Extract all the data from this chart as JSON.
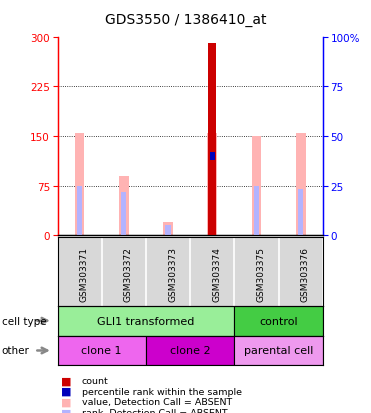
{
  "title": "GDS3550 / 1386410_at",
  "samples": [
    "GSM303371",
    "GSM303372",
    "GSM303373",
    "GSM303374",
    "GSM303375",
    "GSM303376"
  ],
  "count_values": [
    0,
    0,
    0,
    290,
    0,
    0
  ],
  "percentile_rank_vals": [
    0,
    0,
    0,
    120,
    0,
    0
  ],
  "percentile_rank_marker": [
    0,
    0,
    0,
    120,
    0,
    0
  ],
  "value_absent": [
    155,
    90,
    20,
    155,
    150,
    155
  ],
  "rank_absent": [
    75,
    65,
    15,
    120,
    75,
    70
  ],
  "ylim_left": [
    0,
    300
  ],
  "ylim_right": [
    0,
    100
  ],
  "yticks_left": [
    0,
    75,
    150,
    225,
    300
  ],
  "yticks_right": [
    0,
    25,
    50,
    75,
    100
  ],
  "count_color": "#cc0000",
  "percentile_color": "#0000bb",
  "value_absent_color": "#ffb3b3",
  "rank_absent_color": "#b3b3ff",
  "cell_type_row": [
    {
      "label": "GLI1 transformed",
      "cols": 4,
      "color": "#99ee99"
    },
    {
      "label": "control",
      "cols": 2,
      "color": "#44cc44"
    }
  ],
  "other_row": [
    {
      "label": "clone 1",
      "cols": 2,
      "color": "#ee66ee"
    },
    {
      "label": "clone 2",
      "cols": 2,
      "color": "#cc00cc"
    },
    {
      "label": "parental cell",
      "cols": 2,
      "color": "#ee99ee"
    }
  ],
  "legend_items": [
    {
      "color": "#cc0000",
      "label": "count"
    },
    {
      "color": "#0000bb",
      "label": "percentile rank within the sample"
    },
    {
      "color": "#ffb3b3",
      "label": "value, Detection Call = ABSENT"
    },
    {
      "color": "#b3b3ff",
      "label": "rank, Detection Call = ABSENT"
    }
  ],
  "axis_bg": "#d8d8d8",
  "plot_bg": "#ffffff",
  "border_color": "#000000",
  "thin_bar_width": 0.12,
  "value_bar_width": 0.22,
  "count_bar_width": 0.18
}
